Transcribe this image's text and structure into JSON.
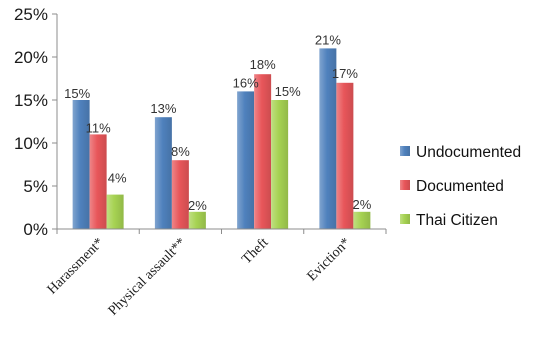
{
  "chart_data": {
    "type": "bar",
    "categories": [
      "Harassment*",
      "Physical assault**",
      "Theft",
      "Eviction*"
    ],
    "series": [
      {
        "name": "Undocumented",
        "color": "#4f81bd",
        "values": [
          15,
          13,
          16,
          21
        ],
        "labels": [
          "15%",
          "13%",
          "16%",
          "21%"
        ]
      },
      {
        "name": "Documented",
        "color": "#e8565a",
        "values": [
          11,
          8,
          18,
          17
        ],
        "labels": [
          "11%",
          "8%",
          "18%",
          "17%"
        ]
      },
      {
        "name": "Thai Citizen",
        "color": "#a6d252",
        "values": [
          4,
          2,
          15,
          2
        ],
        "labels": [
          "4%",
          "2%",
          "15%",
          "2%"
        ]
      }
    ],
    "ylim": [
      0,
      25
    ],
    "yticks": [
      0,
      5,
      10,
      15,
      20,
      25
    ],
    "ytick_labels": [
      "0%",
      "5%",
      "10%",
      "15%",
      "20%",
      "25%"
    ],
    "grid": false,
    "legend": "right",
    "title": "",
    "xlabel": "",
    "ylabel": ""
  }
}
